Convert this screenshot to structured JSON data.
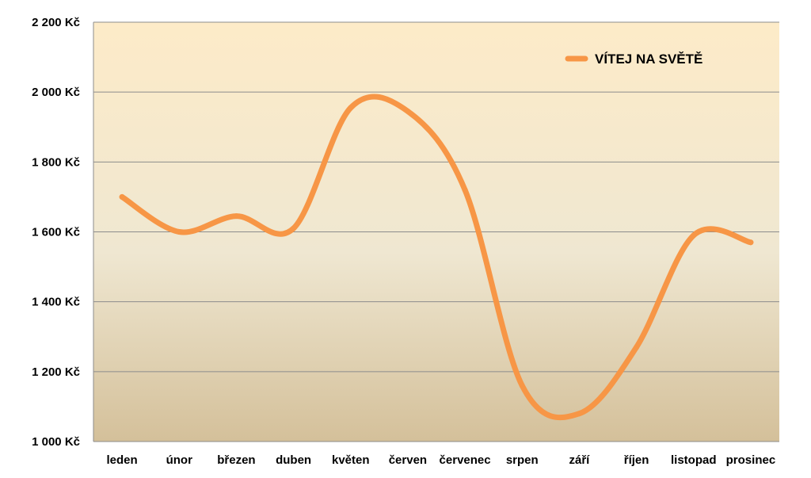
{
  "chart_data": {
    "type": "line",
    "categories": [
      "leden",
      "únor",
      "březen",
      "duben",
      "květen",
      "červen",
      "červenec",
      "srpen",
      "září",
      "říjen",
      "listopad",
      "prosinec"
    ],
    "series": [
      {
        "name": "VÍTEJ NA SVĚTĚ",
        "values": [
          1700,
          1600,
          1645,
          1610,
          1955,
          1945,
          1720,
          1160,
          1080,
          1270,
          1590,
          1570
        ],
        "color": "#F79646"
      }
    ],
    "yticks": [
      1000,
      1200,
      1400,
      1600,
      1800,
      2000,
      2200
    ],
    "ytick_labels": [
      "1 000 Kč",
      "1 200 Kč",
      "1 400 Kč",
      "1 600 Kč",
      "1 800 Kč",
      "2 000 Kč",
      "2 200 Kč"
    ],
    "ylim": [
      1000,
      2200
    ],
    "grid": true,
    "smooth": true,
    "legend_position": "top-right",
    "background_gradient": [
      "#FDEBC8",
      "#EFE7D1",
      "#D4C09A"
    ],
    "gridline_color": "#8C8C8C"
  }
}
